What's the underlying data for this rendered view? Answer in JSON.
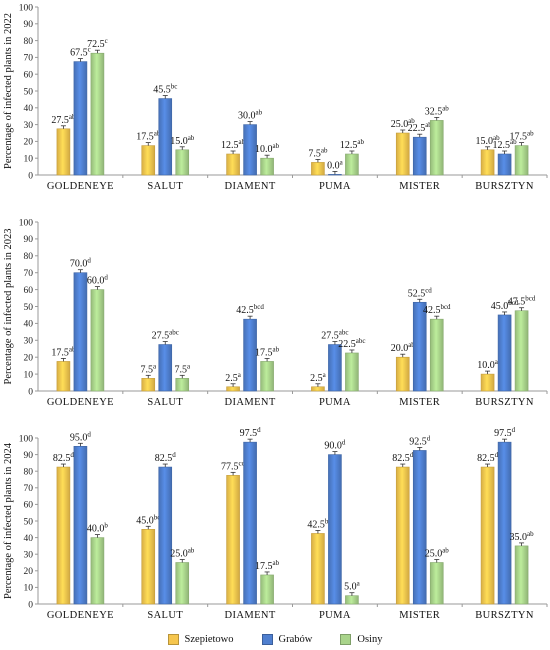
{
  "colors": {
    "Szepietowo": "#f6c64e",
    "Grabów": "#4f7fcf",
    "Osiny": "#a9d48b"
  },
  "legend": [
    "Szepietowo",
    "Grabów",
    "Osiny"
  ],
  "chart_data": [
    {
      "type": "bar",
      "ylabel": "Percentage of infected plants in 2022",
      "ylim": [
        0,
        100
      ],
      "yticks": [
        0,
        10,
        20,
        30,
        40,
        50,
        60,
        70,
        80,
        90,
        100
      ],
      "categories": [
        "GOLDENEYE",
        "SALUT",
        "DIAMENT",
        "PUMA",
        "MISTER",
        "BURSZTYN"
      ],
      "series": [
        {
          "name": "Szepietowo",
          "values": [
            27.5,
            17.5,
            12.5,
            7.5,
            25.0,
            15.0
          ],
          "letters": [
            "ab",
            "ab",
            "ab",
            "ab",
            "ab",
            "ab"
          ]
        },
        {
          "name": "Grabów",
          "values": [
            67.5,
            45.5,
            30.0,
            0.0,
            22.5,
            12.5
          ],
          "letters": [
            "c",
            "bc",
            "ab",
            "a",
            "ab",
            "ab"
          ]
        },
        {
          "name": "Osiny",
          "values": [
            72.5,
            15.0,
            10.0,
            12.5,
            32.5,
            17.5
          ],
          "letters": [
            "c",
            "ab",
            "ab",
            "ab",
            "ab",
            "ab"
          ]
        }
      ]
    },
    {
      "type": "bar",
      "ylabel": "Percentage of infected plants in 2023",
      "ylim": [
        0,
        100
      ],
      "yticks": [
        0,
        10,
        20,
        30,
        40,
        50,
        60,
        70,
        80,
        90,
        100
      ],
      "categories": [
        "GOLDENEYE",
        "SALUT",
        "DIAMENT",
        "PUMA",
        "MISTER",
        "BURSZTYN"
      ],
      "series": [
        {
          "name": "Szepietowo",
          "values": [
            17.5,
            7.5,
            2.5,
            2.5,
            20.0,
            10.0
          ],
          "letters": [
            "ab",
            "a",
            "a",
            "a",
            "ab",
            "a"
          ]
        },
        {
          "name": "Grabów",
          "values": [
            70.0,
            27.5,
            42.5,
            27.5,
            52.5,
            45.0
          ],
          "letters": [
            "d",
            "abc",
            "bcd",
            "abc",
            "cd",
            "bcd"
          ]
        },
        {
          "name": "Osiny",
          "values": [
            60.0,
            7.5,
            17.5,
            22.5,
            42.5,
            47.5
          ],
          "letters": [
            "d",
            "a",
            "ab",
            "abc",
            "bcd",
            "bcd"
          ]
        }
      ]
    },
    {
      "type": "bar",
      "ylabel": "Percentage of infected plants in 2024",
      "ylim": [
        0,
        100
      ],
      "yticks": [
        0,
        10,
        20,
        30,
        40,
        50,
        60,
        70,
        80,
        90,
        100
      ],
      "categories": [
        "GOLDENEYE",
        "SALUT",
        "DIAMENT",
        "PUMA",
        "MISTER",
        "BURSZTYN"
      ],
      "series": [
        {
          "name": "Szepietowo",
          "values": [
            82.5,
            45.0,
            77.5,
            42.5,
            82.5,
            82.5
          ],
          "letters": [
            "d",
            "bc",
            "cd",
            "b",
            "d",
            "d"
          ]
        },
        {
          "name": "Grabów",
          "values": [
            95.0,
            82.5,
            97.5,
            90.0,
            92.5,
            97.5
          ],
          "letters": [
            "d",
            "d",
            "d",
            "d",
            "d",
            "d"
          ]
        },
        {
          "name": "Osiny",
          "values": [
            40.0,
            25.0,
            17.5,
            5.0,
            25.0,
            35.0
          ],
          "letters": [
            "b",
            "ab",
            "ab",
            "a",
            "ab",
            "ab"
          ]
        }
      ]
    }
  ]
}
